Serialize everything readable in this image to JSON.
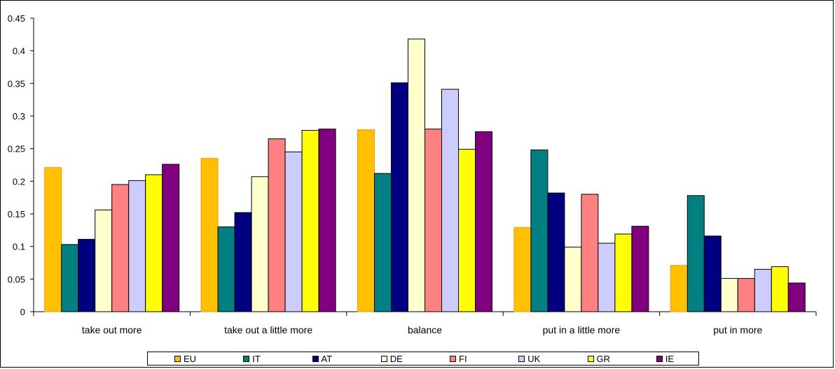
{
  "chart_data": {
    "type": "bar",
    "title": "",
    "xlabel": "",
    "ylabel": "",
    "ylim": [
      0,
      0.45
    ],
    "yticks": [
      0,
      0.05,
      0.1,
      0.15,
      0.2,
      0.25,
      0.3,
      0.35,
      0.4,
      0.45
    ],
    "ytick_labels": [
      "0",
      "0.05",
      "0.1",
      "0.15",
      "0.2",
      "0.25",
      "0.3",
      "0.35",
      "0.4",
      "0.45"
    ],
    "grid": false,
    "legend_position": "bottom",
    "categories": [
      "take out more",
      "take out a little more",
      "balance",
      "put in a little more",
      "put in more"
    ],
    "series": [
      {
        "name": "EU",
        "color": "#FFC000",
        "values": [
          0.221,
          0.235,
          0.279,
          0.129,
          0.071
        ]
      },
      {
        "name": "IT",
        "color": "#008080",
        "values": [
          0.103,
          0.13,
          0.212,
          0.248,
          0.178
        ]
      },
      {
        "name": "AT",
        "color": "#000080",
        "values": [
          0.111,
          0.152,
          0.351,
          0.182,
          0.116
        ]
      },
      {
        "name": "DE",
        "color": "#FFFFCC",
        "values": [
          0.156,
          0.207,
          0.418,
          0.099,
          0.051
        ]
      },
      {
        "name": "FI",
        "color": "#FF8080",
        "values": [
          0.195,
          0.265,
          0.28,
          0.18,
          0.051
        ]
      },
      {
        "name": "UK",
        "color": "#CCCCFF",
        "values": [
          0.201,
          0.245,
          0.341,
          0.105,
          0.065
        ]
      },
      {
        "name": "GR",
        "color": "#FFFF00",
        "values": [
          0.21,
          0.278,
          0.249,
          0.119,
          0.069
        ]
      },
      {
        "name": "IE",
        "color": "#800080",
        "values": [
          0.226,
          0.28,
          0.276,
          0.131,
          0.044
        ]
      }
    ]
  }
}
